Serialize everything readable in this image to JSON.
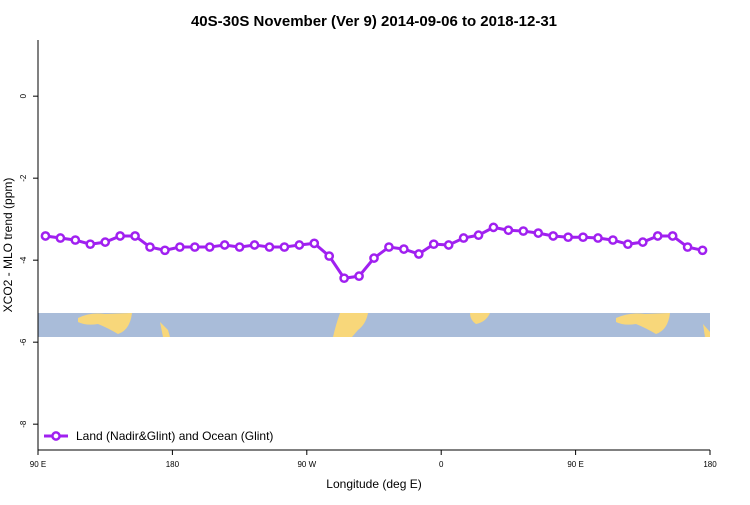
{
  "chart_data": {
    "type": "line",
    "title": "40S-30S November (Ver 9)   2014-09-06 to 2018-12-31",
    "x_label": "Longitude (deg E)",
    "y_label": "XCO2 - MLO trend (ppm)",
    "x": [
      95,
      105,
      115,
      125,
      135,
      145,
      155,
      165,
      175,
      185,
      195,
      205,
      215,
      225,
      235,
      245,
      255,
      265,
      275,
      285,
      295,
      305,
      315,
      325,
      335,
      345,
      355,
      365,
      375,
      385,
      395,
      405,
      415,
      425,
      435,
      445,
      455,
      465,
      475,
      485,
      495,
      505,
      515,
      525,
      535
    ],
    "series": [
      {
        "name": "Land (Nadir&Glint) and Ocean (Glint)",
        "color": "#a020f0",
        "values": [
          -3.41,
          -3.46,
          -3.51,
          -3.61,
          -3.56,
          -3.41,
          -3.41,
          -3.68,
          -3.76,
          -3.68,
          -3.68,
          -3.68,
          -3.63,
          -3.68,
          -3.63,
          -3.68,
          -3.68,
          -3.63,
          -3.59,
          -3.9,
          -4.44,
          -4.39,
          -3.95,
          -3.68,
          -3.73,
          -3.85,
          -3.61,
          -3.63,
          -3.46,
          -3.39,
          -3.2,
          -3.27,
          -3.29,
          -3.34,
          -3.41,
          -3.44,
          -3.44,
          -3.46,
          -3.51,
          -3.61,
          -3.56,
          -3.41,
          -3.41,
          -3.68,
          -3.76
        ]
      }
    ],
    "xlim": [
      90,
      540
    ],
    "xticks": [
      {
        "value": 90,
        "label": "90 E"
      },
      {
        "value": 180,
        "label": "180"
      },
      {
        "value": 270,
        "label": "90 W"
      },
      {
        "value": 360,
        "label": "0"
      },
      {
        "value": 450,
        "label": "90 E"
      },
      {
        "value": 540,
        "label": "180"
      }
    ],
    "ylim": [
      -8.63,
      1.37
    ],
    "yticks": [
      0,
      -2,
      -4,
      -6,
      -8
    ],
    "legend": "bottom-left"
  }
}
